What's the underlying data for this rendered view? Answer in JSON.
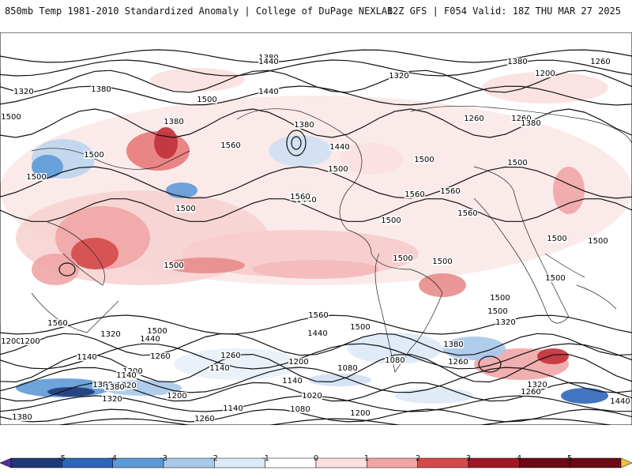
{
  "header": {
    "title": "850mb Temp 1981-2010 Standardized Anomaly | College of DuPage NEXLAB",
    "run_info": "12Z GFS | F054 Valid: 18Z THU MAR 27 2025"
  },
  "colorbar": {
    "labels": [
      "-5",
      "-4",
      "-3",
      "-2",
      "-1",
      "0",
      "1",
      "2",
      "3",
      "4",
      "5"
    ],
    "colors": [
      "#5a2ca0",
      "#1f3a78",
      "#2d66b8",
      "#5e9ad6",
      "#a9c8ea",
      "#dde9f6",
      "#ffffff",
      "#fbe0e0",
      "#f0a6a6",
      "#d44a4a",
      "#a01825",
      "#6b0a14",
      "#f2c230"
    ]
  },
  "contours": {
    "labels": [
      "1380",
      "1440",
      "1260",
      "1320",
      "1380",
      "1200",
      "1320",
      "1260",
      "1380",
      "1440",
      "1500",
      "1560",
      "1380",
      "1380",
      "1440",
      "1500",
      "1500",
      "1500",
      "1560",
      "1440",
      "1260",
      "1380",
      "1500",
      "1500",
      "1500",
      "1500",
      "1560",
      "1560",
      "1500",
      "1560",
      "1500",
      "1500",
      "1500",
      "1500",
      "1500",
      "1500",
      "1500",
      "1500",
      "1440",
      "1500",
      "1320",
      "1380",
      "1260",
      "1200",
      "1560",
      "1560",
      "1500",
      "1440",
      "1320",
      "1380",
      "1200",
      "1260",
      "1140",
      "1200",
      "1320",
      "1140",
      "1080",
      "1200",
      "1140",
      "1260",
      "1080",
      "1380",
      "1320",
      "1320",
      "1260",
      "1200",
      "1140",
      "1020",
      "1140",
      "1080",
      "1200",
      "1260",
      "1380",
      "1440"
    ]
  }
}
